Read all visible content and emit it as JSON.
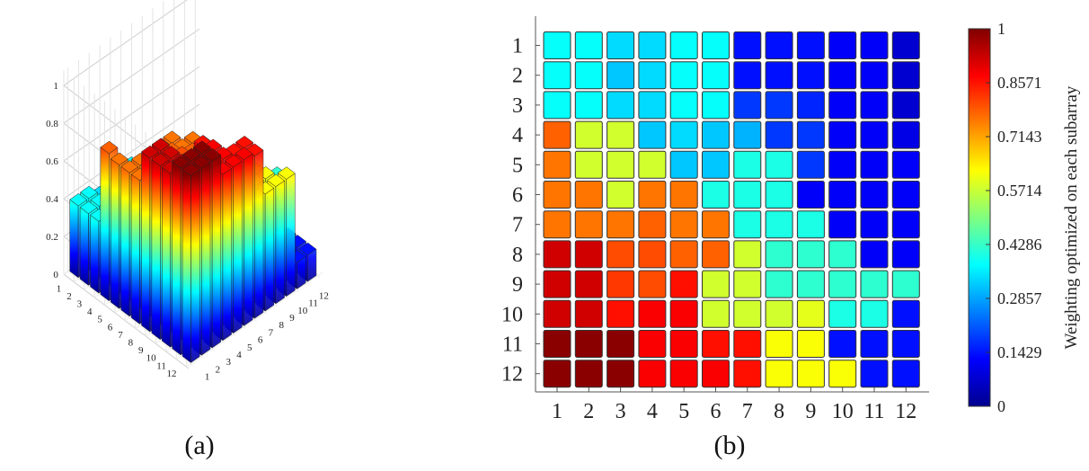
{
  "chart_data": [
    {
      "type": "bar3d",
      "panel_label": "(a)",
      "rows": [
        1,
        2,
        3,
        4,
        5,
        6,
        7,
        8,
        9,
        10,
        11,
        12
      ],
      "cols": [
        1,
        2,
        3,
        4,
        5,
        6,
        7,
        8,
        9,
        10,
        11,
        12
      ],
      "z_ticks": [
        "0",
        "0.2",
        "0.4",
        "0.6",
        "0.8",
        "1"
      ],
      "zlim": [
        0,
        1
      ],
      "grid": true,
      "values": [
        [
          0.38,
          0.38,
          0.34,
          0.34,
          0.38,
          0.38,
          0.14,
          0.14,
          0.14,
          0.12,
          0.12,
          0.08
        ],
        [
          0.38,
          0.38,
          0.32,
          0.34,
          0.38,
          0.38,
          0.14,
          0.14,
          0.14,
          0.12,
          0.12,
          0.08
        ],
        [
          0.38,
          0.38,
          0.34,
          0.34,
          0.38,
          0.38,
          0.18,
          0.18,
          0.16,
          0.12,
          0.12,
          0.08
        ],
        [
          0.78,
          0.58,
          0.58,
          0.32,
          0.34,
          0.32,
          0.3,
          0.18,
          0.18,
          0.12,
          0.12,
          0.1
        ],
        [
          0.76,
          0.58,
          0.58,
          0.58,
          0.32,
          0.32,
          0.4,
          0.4,
          0.18,
          0.12,
          0.12,
          0.12
        ],
        [
          0.76,
          0.76,
          0.58,
          0.76,
          0.76,
          0.4,
          0.4,
          0.4,
          0.12,
          0.12,
          0.12,
          0.12
        ],
        [
          0.76,
          0.76,
          0.76,
          0.78,
          0.76,
          0.76,
          0.4,
          0.4,
          0.4,
          0.12,
          0.12,
          0.12
        ],
        [
          0.92,
          0.92,
          0.8,
          0.8,
          0.78,
          0.78,
          0.58,
          0.42,
          0.42,
          0.42,
          0.12,
          0.12
        ],
        [
          0.92,
          0.92,
          0.82,
          0.8,
          0.86,
          0.58,
          0.58,
          0.42,
          0.42,
          0.42,
          0.42,
          0.42
        ],
        [
          0.92,
          0.92,
          0.86,
          0.88,
          0.88,
          0.58,
          0.58,
          0.58,
          0.6,
          0.4,
          0.4,
          0.14
        ],
        [
          0.99,
          0.99,
          0.99,
          0.88,
          0.88,
          0.86,
          0.86,
          0.62,
          0.62,
          0.14,
          0.14,
          0.14
        ],
        [
          0.99,
          0.99,
          0.99,
          0.88,
          0.88,
          0.88,
          0.86,
          0.62,
          0.62,
          0.62,
          0.14,
          0.14
        ]
      ]
    },
    {
      "type": "heatmap",
      "panel_label": "(b)",
      "rows": [
        "1",
        "2",
        "3",
        "4",
        "5",
        "6",
        "7",
        "8",
        "9",
        "10",
        "11",
        "12"
      ],
      "cols": [
        "1",
        "2",
        "3",
        "4",
        "5",
        "6",
        "7",
        "8",
        "9",
        "10",
        "11",
        "12"
      ],
      "values": [
        [
          0.38,
          0.38,
          0.34,
          0.34,
          0.38,
          0.38,
          0.14,
          0.14,
          0.14,
          0.12,
          0.12,
          0.08
        ],
        [
          0.38,
          0.38,
          0.32,
          0.34,
          0.38,
          0.38,
          0.14,
          0.14,
          0.14,
          0.12,
          0.12,
          0.08
        ],
        [
          0.38,
          0.38,
          0.34,
          0.34,
          0.38,
          0.38,
          0.18,
          0.18,
          0.16,
          0.12,
          0.12,
          0.08
        ],
        [
          0.78,
          0.58,
          0.58,
          0.32,
          0.34,
          0.32,
          0.3,
          0.18,
          0.18,
          0.12,
          0.12,
          0.1
        ],
        [
          0.76,
          0.58,
          0.58,
          0.58,
          0.32,
          0.32,
          0.4,
          0.4,
          0.18,
          0.12,
          0.12,
          0.12
        ],
        [
          0.76,
          0.76,
          0.58,
          0.76,
          0.76,
          0.4,
          0.4,
          0.4,
          0.12,
          0.12,
          0.12,
          0.12
        ],
        [
          0.76,
          0.76,
          0.76,
          0.78,
          0.76,
          0.76,
          0.4,
          0.4,
          0.4,
          0.12,
          0.12,
          0.12
        ],
        [
          0.92,
          0.92,
          0.8,
          0.8,
          0.78,
          0.78,
          0.58,
          0.42,
          0.42,
          0.42,
          0.12,
          0.12
        ],
        [
          0.92,
          0.92,
          0.82,
          0.8,
          0.86,
          0.58,
          0.58,
          0.42,
          0.42,
          0.42,
          0.42,
          0.42
        ],
        [
          0.92,
          0.92,
          0.86,
          0.88,
          0.88,
          0.58,
          0.58,
          0.58,
          0.6,
          0.4,
          0.4,
          0.14
        ],
        [
          0.99,
          0.99,
          0.99,
          0.88,
          0.88,
          0.86,
          0.86,
          0.62,
          0.62,
          0.14,
          0.14,
          0.14
        ],
        [
          0.99,
          0.99,
          0.99,
          0.88,
          0.88,
          0.88,
          0.86,
          0.62,
          0.62,
          0.62,
          0.14,
          0.14
        ]
      ],
      "colorbar": {
        "title": "Weighting optimized on each subarray",
        "ticks": [
          "0",
          "0.1429",
          "0.2857",
          "0.4286",
          "0.5714",
          "0.7143",
          "0.8571",
          "1"
        ],
        "range": [
          0,
          1
        ],
        "colormap": "jet"
      }
    }
  ]
}
